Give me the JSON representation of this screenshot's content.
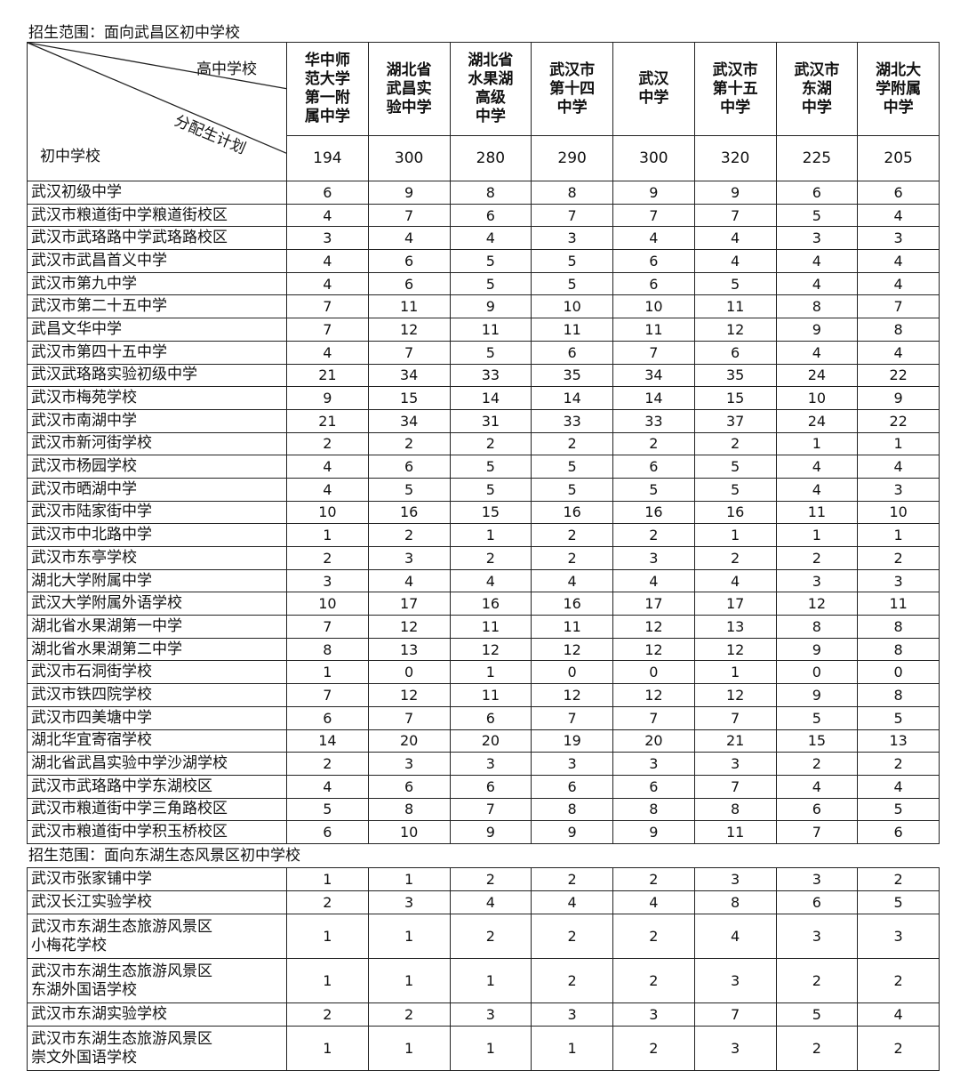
{
  "section1": {
    "title": "招生范围：面向武昌区初中学校"
  },
  "header": {
    "corner": {
      "top": "高中学校",
      "middle": "分配生计划",
      "bottom": "初中学校"
    },
    "columns": [
      "华中师\n范大学\n第一附\n属中学",
      "湖北省\n武昌实\n验中学",
      "湖北省\n水果湖\n高级\n中学",
      "武汉市\n第十四\n中学",
      "武汉\n中学",
      "武汉市\n第十五\n中学",
      "武汉市\n东湖\n中学",
      "湖北大\n学附属\n中学"
    ],
    "quotas": [
      194,
      300,
      280,
      290,
      300,
      320,
      225,
      205
    ]
  },
  "rows": [
    {
      "name": "武汉初级中学",
      "values": [
        6,
        9,
        8,
        8,
        9,
        9,
        6,
        6
      ]
    },
    {
      "name": "武汉市粮道街中学粮道街校区",
      "values": [
        4,
        7,
        6,
        7,
        7,
        7,
        5,
        4
      ]
    },
    {
      "name": "武汉市武珞路中学武珞路校区",
      "values": [
        3,
        4,
        4,
        3,
        4,
        4,
        3,
        3
      ]
    },
    {
      "name": "武汉市武昌首义中学",
      "values": [
        4,
        6,
        5,
        5,
        6,
        4,
        4,
        4
      ]
    },
    {
      "name": "武汉市第九中学",
      "values": [
        4,
        6,
        5,
        5,
        6,
        5,
        4,
        4
      ]
    },
    {
      "name": "武汉市第二十五中学",
      "values": [
        7,
        11,
        9,
        10,
        10,
        11,
        8,
        7
      ]
    },
    {
      "name": "武昌文华中学",
      "values": [
        7,
        12,
        11,
        11,
        11,
        12,
        9,
        8
      ]
    },
    {
      "name": "武汉市第四十五中学",
      "values": [
        4,
        7,
        5,
        6,
        7,
        6,
        4,
        4
      ]
    },
    {
      "name": "武汉武珞路实验初级中学",
      "values": [
        21,
        34,
        33,
        35,
        34,
        35,
        24,
        22
      ]
    },
    {
      "name": "武汉市梅苑学校",
      "values": [
        9,
        15,
        14,
        14,
        14,
        15,
        10,
        9
      ]
    },
    {
      "name": "武汉市南湖中学",
      "values": [
        21,
        34,
        31,
        33,
        33,
        37,
        24,
        22
      ]
    },
    {
      "name": "武汉市新河街学校",
      "values": [
        2,
        2,
        2,
        2,
        2,
        2,
        1,
        1
      ]
    },
    {
      "name": "武汉市杨园学校",
      "values": [
        4,
        6,
        5,
        5,
        6,
        5,
        4,
        4
      ]
    },
    {
      "name": "武汉市晒湖中学",
      "values": [
        4,
        5,
        5,
        5,
        5,
        5,
        4,
        3
      ]
    },
    {
      "name": "武汉市陆家街中学",
      "values": [
        10,
        16,
        15,
        16,
        16,
        16,
        11,
        10
      ]
    },
    {
      "name": "武汉市中北路中学",
      "values": [
        1,
        2,
        1,
        2,
        2,
        1,
        1,
        1
      ]
    },
    {
      "name": "武汉市东亭学校",
      "values": [
        2,
        3,
        2,
        2,
        3,
        2,
        2,
        2
      ]
    },
    {
      "name": "湖北大学附属中学",
      "values": [
        3,
        4,
        4,
        4,
        4,
        4,
        3,
        3
      ]
    },
    {
      "name": "武汉大学附属外语学校",
      "values": [
        10,
        17,
        16,
        16,
        17,
        17,
        12,
        11
      ]
    },
    {
      "name": "湖北省水果湖第一中学",
      "values": [
        7,
        12,
        11,
        11,
        12,
        13,
        8,
        8
      ]
    },
    {
      "name": "湖北省水果湖第二中学",
      "values": [
        8,
        13,
        12,
        12,
        12,
        12,
        9,
        8
      ]
    },
    {
      "name": "武汉市石洞街学校",
      "values": [
        1,
        0,
        1,
        0,
        0,
        1,
        0,
        0
      ]
    },
    {
      "name": "武汉市铁四院学校",
      "values": [
        7,
        12,
        11,
        12,
        12,
        12,
        9,
        8
      ]
    },
    {
      "name": "武汉市四美塘中学",
      "values": [
        6,
        7,
        6,
        7,
        7,
        7,
        5,
        5
      ]
    },
    {
      "name": "湖北华宜寄宿学校",
      "values": [
        14,
        20,
        20,
        19,
        20,
        21,
        15,
        13
      ]
    },
    {
      "name": "湖北省武昌实验中学沙湖学校",
      "values": [
        2,
        3,
        3,
        3,
        3,
        3,
        2,
        2
      ]
    },
    {
      "name": "武汉市武珞路中学东湖校区",
      "values": [
        4,
        6,
        6,
        6,
        6,
        7,
        4,
        4
      ]
    },
    {
      "name": "武汉市粮道街中学三角路校区",
      "values": [
        5,
        8,
        7,
        8,
        8,
        8,
        6,
        5
      ]
    },
    {
      "name": "武汉市粮道街中学积玉桥校区",
      "values": [
        6,
        10,
        9,
        9,
        9,
        11,
        7,
        6
      ]
    }
  ],
  "section2": {
    "title": "招生范围：面向东湖生态风景区初中学校",
    "rows": [
      {
        "name": "武汉市张家铺中学",
        "values": [
          1,
          1,
          2,
          2,
          2,
          3,
          3,
          2
        ]
      },
      {
        "name": "武汉长江实验学校",
        "values": [
          2,
          3,
          4,
          4,
          4,
          8,
          6,
          5
        ]
      },
      {
        "name": "武汉市东湖生态旅游风景区\n小梅花学校",
        "values": [
          1,
          1,
          2,
          2,
          2,
          4,
          3,
          3
        ]
      },
      {
        "name": "武汉市东湖生态旅游风景区\n东湖外国语学校",
        "values": [
          1,
          1,
          1,
          2,
          2,
          3,
          2,
          2
        ]
      },
      {
        "name": "武汉市东湖实验学校",
        "values": [
          2,
          2,
          3,
          3,
          3,
          7,
          5,
          4
        ]
      },
      {
        "name": "武汉市东湖生态旅游风景区\n崇文外国语学校",
        "values": [
          1,
          1,
          1,
          1,
          2,
          3,
          2,
          2
        ]
      }
    ]
  }
}
